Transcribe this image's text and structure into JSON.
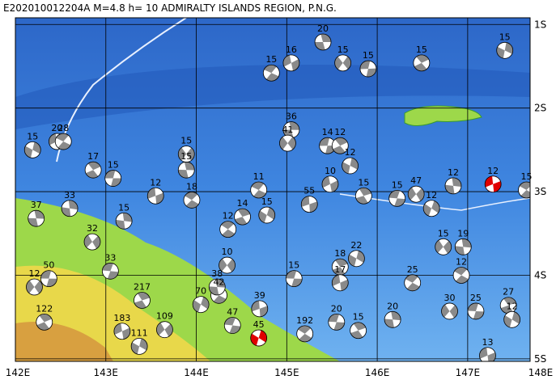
{
  "title": "E202010012204A  M=4.8  h= 10  ADMIRALTY ISLANDS REGION, P.N.G.",
  "map": {
    "xlim": [
      142,
      147.69
    ],
    "ylim": [
      -5.03,
      -0.92
    ],
    "xticks": [
      {
        "value": 142,
        "label": "142E"
      },
      {
        "value": 143,
        "label": "143E"
      },
      {
        "value": 144,
        "label": "144E"
      },
      {
        "value": 145,
        "label": "145E"
      },
      {
        "value": 146,
        "label": "146E"
      },
      {
        "value": 147,
        "label": "147E"
      },
      {
        "value": 148,
        "label": "148E"
      }
    ],
    "yticks": [
      {
        "value": -1,
        "label": "1S"
      },
      {
        "value": -2,
        "label": "2S"
      },
      {
        "value": -3,
        "label": "3S"
      },
      {
        "value": -4,
        "label": "4S"
      },
      {
        "value": -5,
        "label": "5S"
      }
    ],
    "event_color": "#8a8a8a",
    "highlight_color": "#e00000",
    "events": [
      {
        "lon": 145.4,
        "lat": -1.21,
        "depth": 20
      },
      {
        "lon": 145.62,
        "lat": -1.46,
        "depth": 15
      },
      {
        "lon": 145.9,
        "lat": -1.53,
        "depth": 15
      },
      {
        "lon": 146.49,
        "lat": -1.46,
        "depth": 15
      },
      {
        "lon": 147.41,
        "lat": -1.31,
        "depth": 15
      },
      {
        "lon": 145.05,
        "lat": -1.46,
        "depth": 16
      },
      {
        "lon": 144.83,
        "lat": -1.58,
        "depth": 15
      },
      {
        "lon": 145.05,
        "lat": -2.26,
        "depth": 36
      },
      {
        "lon": 145.01,
        "lat": -2.42,
        "depth": 41
      },
      {
        "lon": 145.45,
        "lat": -2.45,
        "depth": 14
      },
      {
        "lon": 145.59,
        "lat": -2.45,
        "depth": 12
      },
      {
        "lon": 145.7,
        "lat": -2.69,
        "depth": 12
      },
      {
        "lon": 145.48,
        "lat": -2.91,
        "depth": 10
      },
      {
        "lon": 144.69,
        "lat": -2.98,
        "depth": 11
      },
      {
        "lon": 143.89,
        "lat": -2.74,
        "depth": 15
      },
      {
        "lon": 143.89,
        "lat": -2.55,
        "depth": 15
      },
      {
        "lon": 143.08,
        "lat": -2.84,
        "depth": 15
      },
      {
        "lon": 142.86,
        "lat": -2.74,
        "depth": 17
      },
      {
        "lon": 142.19,
        "lat": -2.5,
        "depth": 15
      },
      {
        "lon": 142.46,
        "lat": -2.4,
        "depth": 20
      },
      {
        "lon": 142.53,
        "lat": -2.4,
        "depth": 28
      },
      {
        "lon": 142.23,
        "lat": -3.32,
        "depth": 37
      },
      {
        "lon": 142.21,
        "lat": -4.14,
        "depth": 12
      },
      {
        "lon": 142.37,
        "lat": -4.04,
        "depth": 50
      },
      {
        "lon": 142.32,
        "lat": -4.56,
        "depth": 122
      },
      {
        "lon": 143.37,
        "lat": -4.85,
        "depth": 111
      },
      {
        "lon": 143.18,
        "lat": -4.67,
        "depth": 183
      },
      {
        "lon": 144.25,
        "lat": -4.24,
        "depth": 42
      },
      {
        "lon": 144.23,
        "lat": -4.14,
        "depth": 38
      },
      {
        "lon": 144.34,
        "lat": -3.88,
        "depth": 10
      },
      {
        "lon": 145.08,
        "lat": -4.04,
        "depth": 15
      },
      {
        "lon": 145.59,
        "lat": -3.9,
        "depth": 18
      },
      {
        "lon": 145.77,
        "lat": -3.8,
        "depth": 22
      },
      {
        "lon": 145.59,
        "lat": -4.09,
        "depth": 17
      },
      {
        "lon": 146.39,
        "lat": -4.09,
        "depth": 25
      },
      {
        "lon": 146.17,
        "lat": -4.53,
        "depth": 20
      },
      {
        "lon": 146.8,
        "lat": -4.43,
        "depth": 30
      },
      {
        "lon": 147.09,
        "lat": -4.43,
        "depth": 25
      },
      {
        "lon": 147.45,
        "lat": -4.36,
        "depth": 27
      },
      {
        "lon": 147.49,
        "lat": -4.53,
        "depth": 12
      },
      {
        "lon": 147.22,
        "lat": -4.96,
        "depth": 13
      },
      {
        "lon": 146.93,
        "lat": -4.0,
        "depth": 12
      },
      {
        "lon": 146.95,
        "lat": -3.66,
        "depth": 19
      },
      {
        "lon": 146.73,
        "lat": -3.66,
        "depth": 15
      },
      {
        "lon": 145.55,
        "lat": -4.56,
        "depth": 20
      },
      {
        "lon": 145.79,
        "lat": -4.66,
        "depth": 15
      },
      {
        "lon": 144.69,
        "lat": -4.75,
        "depth": 45,
        "highlight": true
      },
      {
        "lon": 147.28,
        "lat": -2.91,
        "depth": 12,
        "highlight": true
      },
      {
        "lon": 147.65,
        "lat": -2.98,
        "depth": 15
      },
      {
        "lon": 146.84,
        "lat": -2.93,
        "depth": 12
      },
      {
        "lon": 146.43,
        "lat": -3.03,
        "depth": 47
      },
      {
        "lon": 146.22,
        "lat": -3.08,
        "depth": 15
      },
      {
        "lon": 144.51,
        "lat": -3.3,
        "depth": 14
      },
      {
        "lon": 144.78,
        "lat": -3.28,
        "depth": 15
      },
      {
        "lon": 143.55,
        "lat": -3.05,
        "depth": 12
      },
      {
        "lon": 143.95,
        "lat": -3.1,
        "depth": 18
      },
      {
        "lon": 143.2,
        "lat": -3.35,
        "depth": 15
      },
      {
        "lon": 142.85,
        "lat": -3.6,
        "depth": 32
      },
      {
        "lon": 143.05,
        "lat": -3.95,
        "depth": 33
      },
      {
        "lon": 143.4,
        "lat": -4.3,
        "depth": 217
      },
      {
        "lon": 144.05,
        "lat": -4.35,
        "depth": 70
      },
      {
        "lon": 144.7,
        "lat": -4.4,
        "depth": 39
      },
      {
        "lon": 145.2,
        "lat": -4.7,
        "depth": 192
      },
      {
        "lon": 142.6,
        "lat": -3.2,
        "depth": 33
      },
      {
        "lon": 143.65,
        "lat": -4.65,
        "depth": 109
      },
      {
        "lon": 144.4,
        "lat": -4.6,
        "depth": 47
      },
      {
        "lon": 145.85,
        "lat": -3.05,
        "depth": 15
      },
      {
        "lon": 146.6,
        "lat": -3.2,
        "depth": 12
      },
      {
        "lon": 145.25,
        "lat": -3.15,
        "depth": 55
      },
      {
        "lon": 144.35,
        "lat": -3.45,
        "depth": 12
      }
    ]
  }
}
